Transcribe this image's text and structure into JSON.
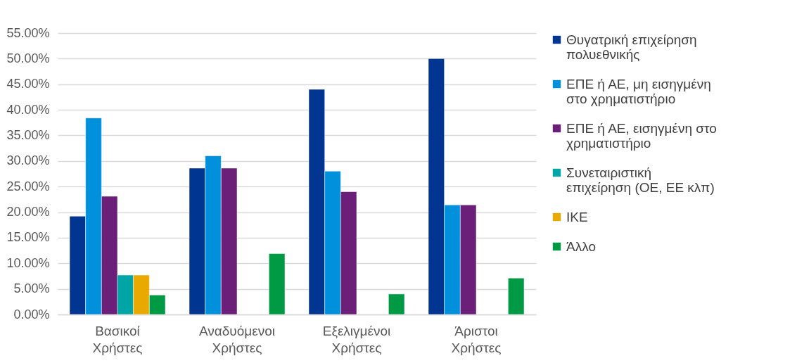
{
  "chart_data": {
    "type": "bar",
    "categories": [
      "Βασικοί Χρήστες",
      "Αναδυόμενοι Χρήστες",
      "Εξελιγμένοι Χρήστες",
      "Άριστοι Χρήστες"
    ],
    "series": [
      {
        "name": "Θυγατρική επιχείρηση πολυεθνικής",
        "color": "#003591",
        "values": [
          19.2,
          28.6,
          44.0,
          50.0
        ]
      },
      {
        "name": "ΕΠΕ ή ΑΕ, μη εισηγμένη στο χρηματιστήριο",
        "color": "#0090dc",
        "values": [
          38.4,
          31.0,
          28.0,
          21.4
        ]
      },
      {
        "name": "ΕΠΕ ή ΑΕ, εισηγμένη στο χρηματιστήριο",
        "color": "#6c1f78",
        "values": [
          23.1,
          28.6,
          24.0,
          21.4
        ]
      },
      {
        "name": "Συνεταιριστική επιχείρηση (ΟΕ, ΕΕ κλπ)",
        "color": "#00a5a5",
        "values": [
          7.7,
          null,
          null,
          null
        ]
      },
      {
        "name": "ΙΚΕ",
        "color": "#e9a900",
        "values": [
          7.7,
          null,
          null,
          null
        ]
      },
      {
        "name": "Άλλο",
        "color": "#009a44",
        "values": [
          3.8,
          11.9,
          4.0,
          7.1
        ]
      }
    ],
    "ylim": [
      0,
      55
    ],
    "yticks": [
      {
        "value": 0,
        "label": "0.00%"
      },
      {
        "value": 5,
        "label": "5.00%"
      },
      {
        "value": 10,
        "label": "10.00%"
      },
      {
        "value": 15,
        "label": "15.00%"
      },
      {
        "value": 20,
        "label": "20.00%"
      },
      {
        "value": 25,
        "label": "25.00%"
      },
      {
        "value": 30,
        "label": "30.00%"
      },
      {
        "value": 35,
        "label": "35.00%"
      },
      {
        "value": 40,
        "label": "40.00%"
      },
      {
        "value": 45,
        "label": "45.00%"
      },
      {
        "value": 50,
        "label": "50.00%"
      },
      {
        "value": 55,
        "label": "55.00%"
      }
    ],
    "grid": "y",
    "legend": "right"
  }
}
